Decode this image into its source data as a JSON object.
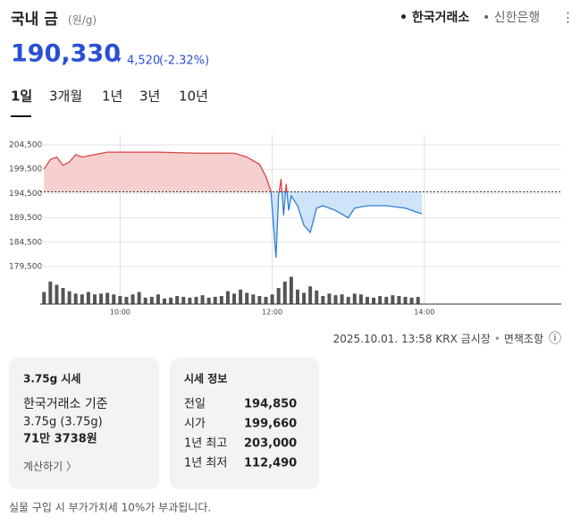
{
  "header": {
    "title": "국내 금",
    "unit": "(원/g)",
    "sources": [
      "• 한국거래소",
      "• 신한은행"
    ],
    "menu": "⋮"
  },
  "price": {
    "current": "190,330",
    "arrow": "▾",
    "change": "4,520",
    "change_pct": "(-2.32%)"
  },
  "tabs": [
    "1일",
    "3개월",
    "1년",
    "3년",
    "10년"
  ],
  "chart_data": {
    "type": "line",
    "x": [
      "09:00",
      "09:05",
      "09:10",
      "09:15",
      "09:20",
      "09:25",
      "09:30",
      "09:40",
      "09:50",
      "10:00",
      "10:30",
      "11:00",
      "11:30",
      "11:40",
      "11:50",
      "11:55",
      "11:59",
      "12:01",
      "12:03",
      "12:05",
      "12:07",
      "12:09",
      "12:11",
      "12:13",
      "12:15",
      "12:20",
      "12:25",
      "12:30",
      "12:35",
      "12:40",
      "12:50",
      "13:00",
      "13:05",
      "13:15",
      "13:30",
      "13:45",
      "13:58"
    ],
    "values": [
      199500,
      201500,
      202000,
      200300,
      201000,
      202500,
      202000,
      202500,
      203000,
      203000,
      203000,
      202800,
      202800,
      202000,
      200500,
      198000,
      195000,
      188000,
      181300,
      194000,
      197500,
      190000,
      196500,
      191000,
      194000,
      192000,
      188000,
      186500,
      191500,
      192000,
      191000,
      189500,
      191500,
      192000,
      192000,
      191500,
      190330
    ],
    "color_up": "#d64545",
    "color_down": "#2f7fd4",
    "fill_up": "#f6cfcf",
    "fill_down": "#cfe4f8",
    "xlim": [
      "08:57",
      "15:48"
    ],
    "xticks": [
      "10:00",
      "12:00",
      "14:00"
    ],
    "ylim": [
      179500,
      204500
    ],
    "yticks": [
      {
        "value": 204500,
        "label": "204,500"
      },
      {
        "value": 199500,
        "label": "199,500"
      },
      {
        "value": 194500,
        "label": "194,500"
      },
      {
        "value": 189500,
        "label": "189,500"
      },
      {
        "value": 184500,
        "label": "184,500"
      },
      {
        "value": 179500,
        "label": "179,500"
      }
    ],
    "grid": true,
    "volume": {
      "color": "#555555",
      "ylim": [
        0,
        40
      ],
      "x": [
        "09:00",
        "09:05",
        "09:10",
        "09:15",
        "09:20",
        "09:25",
        "09:30",
        "09:35",
        "09:40",
        "09:45",
        "09:50",
        "09:55",
        "10:00",
        "10:05",
        "10:10",
        "10:15",
        "10:20",
        "10:25",
        "10:30",
        "10:35",
        "10:40",
        "10:45",
        "10:50",
        "10:55",
        "11:00",
        "11:05",
        "11:10",
        "11:15",
        "11:20",
        "11:25",
        "11:30",
        "11:35",
        "11:40",
        "11:45",
        "11:50",
        "11:55",
        "12:00",
        "12:05",
        "12:10",
        "12:15",
        "12:20",
        "12:25",
        "12:30",
        "12:35",
        "12:40",
        "12:45",
        "12:50",
        "12:55",
        "13:00",
        "13:05",
        "13:10",
        "13:15",
        "13:20",
        "13:25",
        "13:30",
        "13:35",
        "13:40",
        "13:45",
        "13:50",
        "13:55"
      ],
      "values": [
        15,
        28,
        24,
        20,
        16,
        13,
        12,
        15,
        12,
        13,
        14,
        12,
        10,
        9,
        12,
        15,
        8,
        9,
        12,
        7,
        8,
        10,
        9,
        8,
        9,
        11,
        8,
        9,
        10,
        16,
        13,
        18,
        14,
        12,
        10,
        9,
        12,
        20,
        28,
        34,
        18,
        14,
        22,
        17,
        10,
        13,
        11,
        12,
        9,
        13,
        12,
        9,
        8,
        10,
        9,
        11,
        10,
        9,
        8,
        9
      ]
    }
  },
  "footer": {
    "timestamp": "2025.10.01. 13:58 KRX 금시장",
    "separator": "•",
    "disclaimer": "면책조항",
    "icon": "ⓘ"
  },
  "card_375": {
    "title": "3.75g 시세",
    "basis": "한국거래소 기준",
    "weight": "3.75g (3.75g)",
    "amount": "71만 3738원",
    "action": "계산하기 〉"
  },
  "info": {
    "title": "시세 정보",
    "rows": [
      {
        "name": "전일",
        "value": {
          "value": 194850,
          "label": "194,850"
        }
      },
      {
        "name": "시가",
        "value": {
          "value": 199660,
          "label": "199,660"
        }
      },
      {
        "name": "1년 최고",
        "value": {
          "value": 203000,
          "label": "203,000"
        }
      },
      {
        "name": "1년 최저",
        "value": {
          "value": 112490,
          "label": "112,490"
        }
      }
    ]
  },
  "note": "실물 구입 시 부가가치세 10%가 부과됩니다."
}
